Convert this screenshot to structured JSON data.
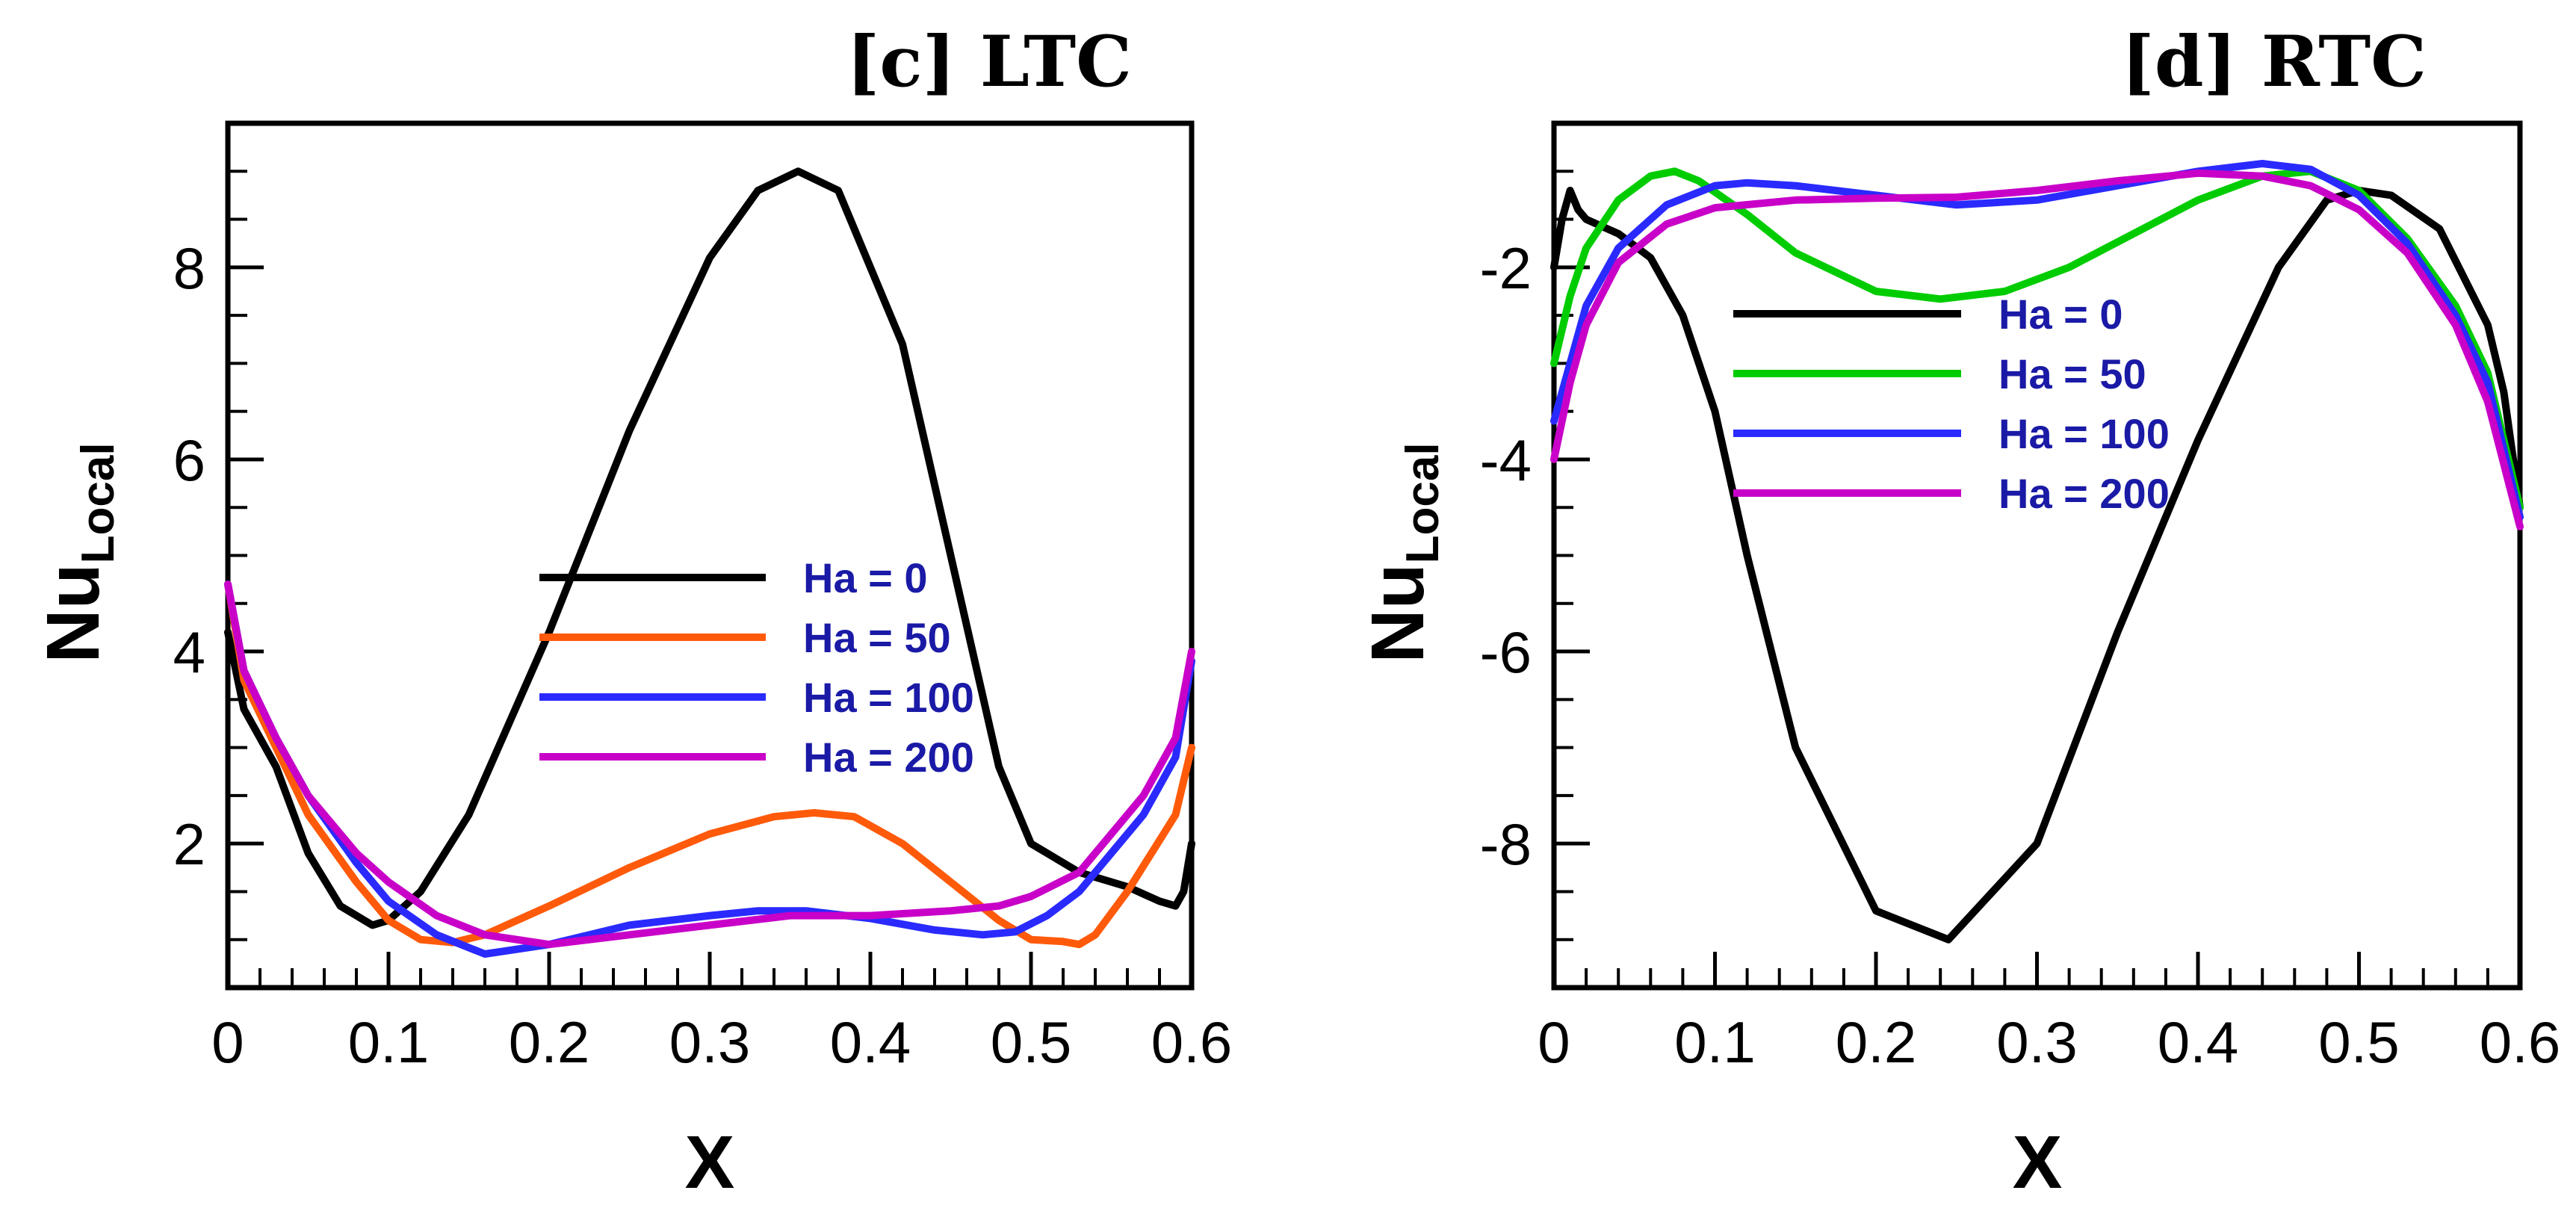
{
  "chart_data": [
    {
      "type": "line",
      "title": "[c] LTC",
      "xlabel": "X",
      "ylabel_main": "Nu",
      "ylabel_sub": "Local",
      "xlim": [
        0,
        0.6
      ],
      "ylim": [
        0.5,
        9.5
      ],
      "xticks": [
        0,
        0.1,
        0.2,
        0.3,
        0.4,
        0.5,
        0.6
      ],
      "xtick_labels": [
        "0",
        "0.1",
        "0.2",
        "0.3",
        "0.4",
        "0.5",
        "0.6"
      ],
      "yticks": [
        2,
        4,
        6,
        8
      ],
      "ytick_labels": [
        "2",
        "4",
        "6",
        "8"
      ],
      "legend_position": "center",
      "series": [
        {
          "name": "Ha = 0",
          "color": "#000000",
          "x": [
            0,
            0.01,
            0.03,
            0.05,
            0.07,
            0.09,
            0.1,
            0.12,
            0.15,
            0.2,
            0.25,
            0.3,
            0.33,
            0.355,
            0.38,
            0.42,
            0.45,
            0.48,
            0.5,
            0.53,
            0.56,
            0.58,
            0.59,
            0.595,
            0.6
          ],
          "y": [
            4.2,
            3.4,
            2.8,
            1.9,
            1.35,
            1.15,
            1.2,
            1.5,
            2.3,
            4.2,
            6.3,
            8.1,
            8.8,
            9.0,
            8.8,
            7.2,
            5.0,
            2.8,
            2.0,
            1.7,
            1.55,
            1.4,
            1.35,
            1.5,
            2.0
          ]
        },
        {
          "name": "Ha = 50",
          "color": "#ff5a0a",
          "x": [
            0,
            0.01,
            0.03,
            0.05,
            0.08,
            0.1,
            0.12,
            0.14,
            0.16,
            0.2,
            0.25,
            0.3,
            0.34,
            0.365,
            0.39,
            0.42,
            0.45,
            0.48,
            0.5,
            0.52,
            0.53,
            0.54,
            0.56,
            0.575,
            0.59,
            0.6
          ],
          "y": [
            4.7,
            3.7,
            3.0,
            2.3,
            1.6,
            1.2,
            1.0,
            0.97,
            1.05,
            1.35,
            1.75,
            2.1,
            2.28,
            2.32,
            2.28,
            2.0,
            1.6,
            1.2,
            1.0,
            0.98,
            0.95,
            1.05,
            1.5,
            1.9,
            2.3,
            3.0
          ]
        },
        {
          "name": "Ha = 100",
          "color": "#2a2aff",
          "x": [
            0,
            0.01,
            0.03,
            0.05,
            0.08,
            0.1,
            0.13,
            0.16,
            0.2,
            0.25,
            0.3,
            0.33,
            0.36,
            0.4,
            0.44,
            0.47,
            0.49,
            0.51,
            0.53,
            0.55,
            0.57,
            0.59,
            0.6
          ],
          "y": [
            4.7,
            3.8,
            3.1,
            2.5,
            1.8,
            1.4,
            1.05,
            0.85,
            0.95,
            1.15,
            1.25,
            1.3,
            1.3,
            1.22,
            1.1,
            1.05,
            1.08,
            1.25,
            1.5,
            1.9,
            2.3,
            2.9,
            3.9
          ]
        },
        {
          "name": "Ha = 200",
          "color": "#c800c8",
          "x": [
            0,
            0.01,
            0.03,
            0.05,
            0.08,
            0.1,
            0.13,
            0.16,
            0.2,
            0.25,
            0.3,
            0.35,
            0.4,
            0.45,
            0.48,
            0.5,
            0.53,
            0.55,
            0.57,
            0.59,
            0.6
          ],
          "y": [
            4.7,
            3.8,
            3.1,
            2.5,
            1.9,
            1.6,
            1.25,
            1.05,
            0.95,
            1.05,
            1.15,
            1.25,
            1.25,
            1.3,
            1.35,
            1.45,
            1.7,
            2.1,
            2.5,
            3.1,
            4.0
          ]
        }
      ]
    },
    {
      "type": "line",
      "title": "[d] RTC",
      "xlabel": "X",
      "ylabel_main": "Nu",
      "ylabel_sub": "Local",
      "xlim": [
        0,
        0.6
      ],
      "ylim": [
        -9.5,
        -0.5
      ],
      "xticks": [
        0,
        0.1,
        0.2,
        0.3,
        0.4,
        0.5,
        0.6
      ],
      "xtick_labels": [
        "0",
        "0.1",
        "0.2",
        "0.3",
        "0.4",
        "0.5",
        "0.6"
      ],
      "yticks": [
        -8,
        -6,
        -4,
        -2
      ],
      "ytick_labels": [
        "-8",
        "-6",
        "-4",
        "-2"
      ],
      "legend_position": "top-center",
      "series": [
        {
          "name": "Ha = 0",
          "color": "#000000",
          "x": [
            0,
            0.005,
            0.01,
            0.015,
            0.02,
            0.04,
            0.06,
            0.08,
            0.1,
            0.12,
            0.15,
            0.2,
            0.245,
            0.3,
            0.35,
            0.4,
            0.45,
            0.48,
            0.5,
            0.52,
            0.55,
            0.58,
            0.59,
            0.6
          ],
          "y": [
            -2.0,
            -1.5,
            -1.2,
            -1.4,
            -1.5,
            -1.65,
            -1.9,
            -2.5,
            -3.5,
            -5.0,
            -7.0,
            -8.7,
            -9.0,
            -8.0,
            -5.8,
            -3.8,
            -2.0,
            -1.3,
            -1.2,
            -1.25,
            -1.6,
            -2.6,
            -3.3,
            -4.5
          ]
        },
        {
          "name": "Ha = 50",
          "color": "#00cc00",
          "x": [
            0,
            0.01,
            0.02,
            0.04,
            0.06,
            0.075,
            0.09,
            0.12,
            0.15,
            0.2,
            0.24,
            0.28,
            0.32,
            0.36,
            0.4,
            0.44,
            0.47,
            0.5,
            0.53,
            0.56,
            0.58,
            0.6
          ],
          "y": [
            -3.0,
            -2.3,
            -1.8,
            -1.3,
            -1.05,
            -1.0,
            -1.1,
            -1.45,
            -1.85,
            -2.25,
            -2.33,
            -2.25,
            -2.0,
            -1.65,
            -1.3,
            -1.05,
            -1.0,
            -1.2,
            -1.7,
            -2.4,
            -3.1,
            -4.5
          ]
        },
        {
          "name": "Ha = 100",
          "color": "#2a2aff",
          "x": [
            0,
            0.01,
            0.02,
            0.04,
            0.07,
            0.1,
            0.12,
            0.15,
            0.2,
            0.25,
            0.3,
            0.35,
            0.4,
            0.44,
            0.47,
            0.5,
            0.53,
            0.56,
            0.58,
            0.6
          ],
          "y": [
            -3.6,
            -3.0,
            -2.4,
            -1.8,
            -1.35,
            -1.15,
            -1.12,
            -1.15,
            -1.25,
            -1.35,
            -1.3,
            -1.15,
            -1.0,
            -0.92,
            -0.98,
            -1.25,
            -1.75,
            -2.5,
            -3.2,
            -4.6
          ]
        },
        {
          "name": "Ha = 200",
          "color": "#c800c8",
          "x": [
            0,
            0.01,
            0.02,
            0.04,
            0.07,
            0.1,
            0.15,
            0.2,
            0.25,
            0.3,
            0.35,
            0.4,
            0.44,
            0.47,
            0.5,
            0.53,
            0.56,
            0.58,
            0.6
          ],
          "y": [
            -4.0,
            -3.2,
            -2.6,
            -1.95,
            -1.55,
            -1.38,
            -1.3,
            -1.28,
            -1.27,
            -1.2,
            -1.1,
            -1.02,
            -1.05,
            -1.15,
            -1.4,
            -1.85,
            -2.6,
            -3.4,
            -4.7
          ]
        }
      ]
    }
  ]
}
